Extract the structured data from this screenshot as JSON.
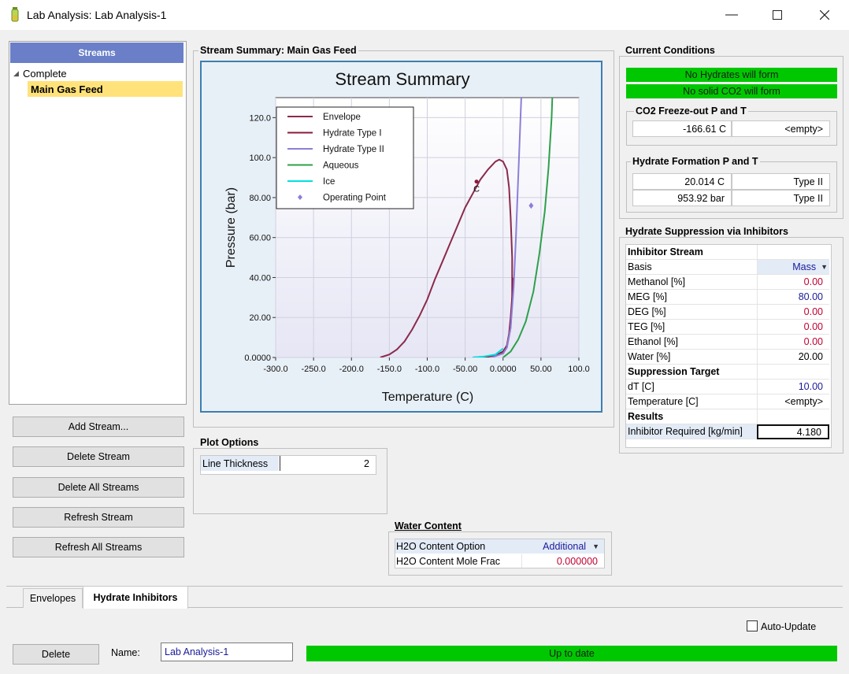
{
  "window": {
    "title": "Lab Analysis: Lab Analysis-1",
    "minimize": "—",
    "maximize": "☐",
    "close": "✕"
  },
  "streams": {
    "header": "Streams",
    "tree_parent": "Complete",
    "tree_selected": "Main Gas Feed"
  },
  "buttons": {
    "add_stream": "Add Stream...",
    "delete_stream": "Delete Stream",
    "delete_all": "Delete All Streams",
    "refresh_stream": "Refresh Stream",
    "refresh_all": "Refresh All Streams"
  },
  "summary": {
    "group_title": "Stream Summary: Main Gas Feed"
  },
  "chart_data": {
    "type": "line",
    "title": "Stream Summary",
    "xlabel": "Temperature (C)",
    "ylabel": "Pressure (bar)",
    "xlim": [
      -300,
      100
    ],
    "ylim": [
      0,
      130
    ],
    "x_ticks": [
      "-300.0",
      "-250.0",
      "-200.0",
      "-150.0",
      "-100.0",
      "-50.00",
      "0.0000",
      "50.00",
      "100.0"
    ],
    "x_tick_values": [
      -300,
      -250,
      -200,
      -150,
      -100,
      -50,
      0,
      50,
      100
    ],
    "y_ticks": [
      "0.0000",
      "20.00",
      "40.00",
      "60.00",
      "80.00",
      "100.0",
      "120.0"
    ],
    "y_tick_values": [
      0,
      20,
      40,
      60,
      80,
      100,
      120
    ],
    "grid": true,
    "legend_position": "top-left",
    "series": [
      {
        "name": "Envelope",
        "color": "#8b2a4a",
        "points": [
          [
            -162,
            0
          ],
          [
            -150,
            1.5
          ],
          [
            -140,
            4
          ],
          [
            -130,
            8
          ],
          [
            -120,
            14
          ],
          [
            -110,
            21
          ],
          [
            -100,
            29
          ],
          [
            -90,
            39
          ],
          [
            -80,
            48
          ],
          [
            -70,
            57
          ],
          [
            -60,
            66
          ],
          [
            -50,
            75
          ],
          [
            -40,
            82
          ],
          [
            -30,
            89
          ],
          [
            -20,
            94
          ],
          [
            -10,
            98
          ],
          [
            -5,
            99
          ],
          [
            0,
            98
          ],
          [
            5,
            94
          ],
          [
            8,
            85
          ],
          [
            10,
            70
          ],
          [
            12,
            50
          ],
          [
            12,
            30
          ],
          [
            10,
            15
          ],
          [
            5,
            5
          ],
          [
            0,
            2
          ],
          [
            -20,
            0.5
          ],
          [
            -40,
            0
          ]
        ]
      },
      {
        "name": "Hydrate Type I",
        "color": "#8b1a3a",
        "points": [
          [
            -25,
            0
          ],
          [
            -10,
            1
          ],
          [
            0,
            3
          ],
          [
            5,
            6
          ],
          [
            8,
            12
          ],
          [
            10,
            20
          ],
          [
            12,
            30
          ],
          [
            13,
            40
          ]
        ]
      },
      {
        "name": "Hydrate Type II",
        "color": "#8b7fd8",
        "points": [
          [
            -15,
            0
          ],
          [
            0,
            2
          ],
          [
            5,
            5
          ],
          [
            10,
            15
          ],
          [
            14,
            35
          ],
          [
            17,
            60
          ],
          [
            19,
            80
          ],
          [
            21,
            100
          ],
          [
            23,
            120
          ],
          [
            24,
            130
          ]
        ]
      },
      {
        "name": "Aqueous",
        "color": "#2ea04a",
        "points": [
          [
            0,
            0
          ],
          [
            10,
            3
          ],
          [
            20,
            9
          ],
          [
            30,
            18
          ],
          [
            40,
            33
          ],
          [
            48,
            52
          ],
          [
            55,
            73
          ],
          [
            60,
            95
          ],
          [
            64,
            120
          ],
          [
            65,
            130
          ]
        ]
      },
      {
        "name": "Ice",
        "color": "#00e0e0",
        "points": [
          [
            -40,
            0
          ],
          [
            -25,
            0.5
          ],
          [
            -10,
            1.5
          ],
          [
            0,
            4.5
          ]
        ]
      }
    ],
    "operating_point": {
      "name": "Operating Point",
      "color": "#8b7fd8",
      "x": 37,
      "y": 76
    },
    "critical_point": {
      "label": "C",
      "x": -35,
      "y": 88
    }
  },
  "plot_options": {
    "group_title": "Plot Options",
    "line_thickness_label": "Line Thickness",
    "line_thickness_value": "2"
  },
  "current_conditions": {
    "group_title": "Current Conditions",
    "hydrate_status": "No Hydrates will form",
    "co2_status": "No solid CO2 will form",
    "co2_group_title": "CO2 Freeze-out P and T",
    "co2_temp": "-166.61 C",
    "co2_other": "<empty>",
    "hydrate_group_title": "Hydrate Formation P and T",
    "hf_temp": "20.014 C",
    "hf_temp_type": "Type II",
    "hf_pressure": "953.92 bar",
    "hf_pressure_type": "Type II"
  },
  "suppression": {
    "group_title": "Hydrate Suppression via Inhibitors",
    "inhibitor_stream": "Inhibitor Stream",
    "basis_label": "Basis",
    "basis_value": "Mass",
    "methanol_label": "Methanol [%]",
    "methanol_value": "0.00",
    "meg_label": "MEG [%]",
    "meg_value": "80.00",
    "deg_label": "DEG [%]",
    "deg_value": "0.00",
    "teg_label": "TEG [%]",
    "teg_value": "0.00",
    "ethanol_label": "Ethanol [%]",
    "ethanol_value": "0.00",
    "water_label": "Water [%]",
    "water_value": "20.00",
    "target_header": "Suppression Target",
    "dt_label": "dT [C]",
    "dt_value": "10.00",
    "temp_label": "Temperature [C]",
    "temp_value": "<empty>",
    "results_header": "Results",
    "required_label": "Inhibitor Required [kg/min]",
    "required_value": "4.180"
  },
  "water_content": {
    "group_title": "Water Content",
    "option_label": "H2O Content Option",
    "option_value": "Additional",
    "frac_label": "H2O Content Mole Frac",
    "frac_value": "0.000000"
  },
  "tabs": {
    "envelopes": "Envelopes",
    "hydrate_inhibitors": "Hydrate Inhibitors"
  },
  "footer": {
    "auto_update": "Auto-Update",
    "delete": "Delete",
    "name_label": "Name:",
    "name_value": "Lab Analysis-1",
    "status": "Up to date"
  },
  "colors": {
    "accent_blue": "#6a7fc8",
    "status_green": "#00c800",
    "selected_yellow": "#ffe27a",
    "red_value": "#c00030",
    "blue_value": "#1a1a9a"
  }
}
